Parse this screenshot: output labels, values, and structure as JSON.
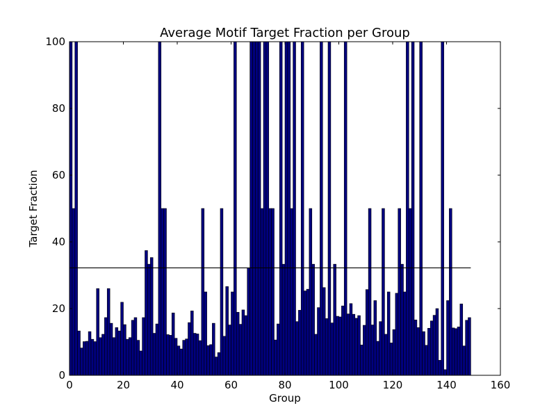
{
  "chart_data": {
    "type": "bar",
    "title": "Average Motif Target Fraction per Group",
    "xlabel": "Group",
    "ylabel": "Target Fraction",
    "xlim": [
      0,
      160
    ],
    "ylim": [
      0,
      100
    ],
    "xticks": [
      0,
      20,
      40,
      60,
      80,
      100,
      120,
      140,
      160
    ],
    "yticks": [
      0,
      20,
      40,
      60,
      80,
      100
    ],
    "bar_width": 1,
    "grid": false,
    "colors": {
      "bar_fill": "#00007f",
      "bar_edge": "#000000",
      "mean_line": "#000000"
    },
    "mean_line": {
      "y": 32.2,
      "x_start": 0,
      "x_end": 149
    },
    "x": [
      0,
      1,
      2,
      3,
      4,
      5,
      6,
      7,
      8,
      9,
      10,
      11,
      12,
      13,
      14,
      15,
      16,
      17,
      18,
      19,
      20,
      21,
      22,
      23,
      24,
      25,
      26,
      27,
      28,
      29,
      30,
      31,
      32,
      33,
      34,
      35,
      36,
      37,
      38,
      39,
      40,
      41,
      42,
      43,
      44,
      45,
      46,
      47,
      48,
      49,
      50,
      51,
      52,
      53,
      54,
      55,
      56,
      57,
      58,
      59,
      60,
      61,
      62,
      63,
      64,
      65,
      66,
      67,
      68,
      69,
      70,
      71,
      72,
      73,
      74,
      75,
      76,
      77,
      78,
      79,
      80,
      81,
      82,
      83,
      84,
      85,
      86,
      87,
      88,
      89,
      90,
      91,
      92,
      93,
      94,
      95,
      96,
      97,
      98,
      99,
      100,
      101,
      102,
      103,
      104,
      105,
      106,
      107,
      108,
      109,
      110,
      111,
      112,
      113,
      114,
      115,
      116,
      117,
      118,
      119,
      120,
      121,
      122,
      123,
      124,
      125,
      126,
      127,
      128,
      129,
      130,
      131,
      132,
      133,
      134,
      135,
      136,
      137,
      138,
      139,
      140,
      141,
      142,
      143,
      144,
      145,
      146,
      147,
      148
    ],
    "values": [
      100,
      50,
      100,
      13.3,
      8.2,
      10.1,
      10.2,
      13.1,
      10.8,
      10.1,
      26,
      11.3,
      12.3,
      17.3,
      26,
      15.6,
      11.3,
      14.3,
      13.3,
      21.9,
      15.2,
      10.8,
      11.3,
      16.5,
      17.3,
      10.5,
      7.3,
      17.3,
      37.4,
      33.3,
      35.3,
      12.6,
      15.4,
      100,
      50,
      50,
      12.2,
      12,
      18.7,
      11.1,
      8.8,
      7.9,
      10.5,
      10.9,
      15.8,
      19.3,
      12.6,
      12.4,
      10.4,
      50,
      25,
      8.9,
      9.2,
      15.6,
      5.5,
      6.8,
      50,
      11.7,
      26.6,
      15.1,
      25,
      100,
      18.9,
      15.3,
      19.6,
      17.9,
      32.2,
      100,
      100,
      100,
      100,
      50,
      100,
      100,
      50,
      50,
      10.6,
      15.4,
      100,
      33.3,
      100,
      100,
      50,
      100,
      16.1,
      19.5,
      100,
      25.3,
      25.8,
      50,
      33.3,
      12.3,
      20.3,
      100,
      26.3,
      17,
      100,
      15.7,
      33.3,
      17.7,
      17.5,
      20.8,
      100,
      18.4,
      21.5,
      18.3,
      17.1,
      17.9,
      9.1,
      15,
      25.7,
      50,
      15.1,
      22.4,
      10.2,
      16.1,
      50,
      12.3,
      25,
      9.7,
      13.7,
      24.6,
      50,
      33.3,
      25,
      100,
      50,
      100,
      16.6,
      14.3,
      100,
      13.1,
      9,
      14.1,
      16.3,
      18,
      20,
      4.5,
      100,
      1.7,
      22.4,
      50,
      14.2,
      14,
      14.5,
      21.4,
      8.8,
      16.5,
      17.3
    ]
  }
}
